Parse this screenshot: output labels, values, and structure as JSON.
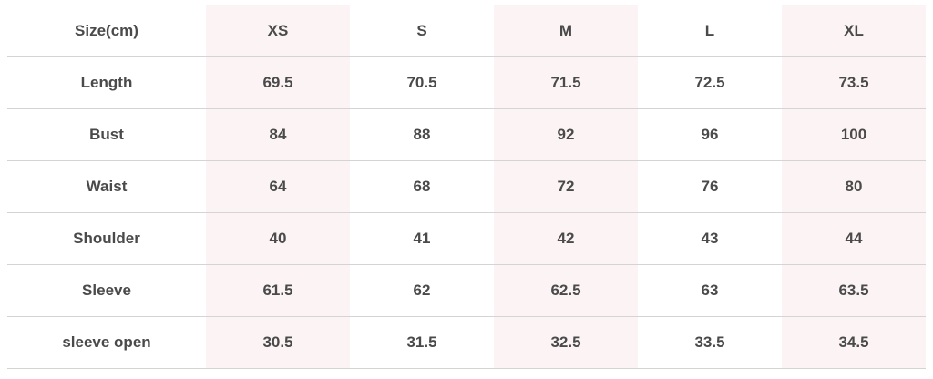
{
  "table": {
    "header": [
      "Size(cm)",
      "XS",
      "S",
      "M",
      "L",
      "XL"
    ],
    "rows": [
      [
        "Length",
        "69.5",
        "70.5",
        "71.5",
        "72.5",
        "73.5"
      ],
      [
        "Bust",
        "84",
        "88",
        "92",
        "96",
        "100"
      ],
      [
        "Waist",
        "64",
        "68",
        "72",
        "76",
        "80"
      ],
      [
        "Shoulder",
        "40",
        "41",
        "42",
        "43",
        "44"
      ],
      [
        "Sleeve",
        "61.5",
        "62",
        "62.5",
        "63",
        "63.5"
      ],
      [
        "sleeve open",
        "30.5",
        "31.5",
        "32.5",
        "33.5",
        "34.5"
      ]
    ]
  }
}
